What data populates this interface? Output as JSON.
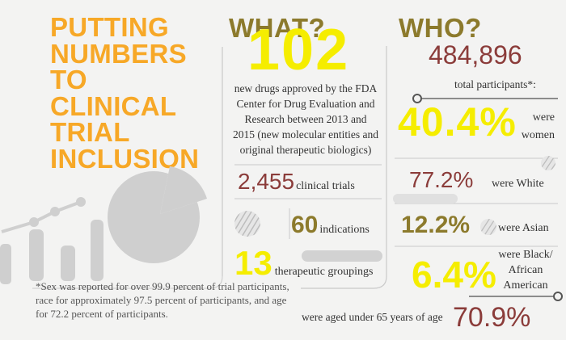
{
  "title": {
    "lines": [
      "PUTTING",
      "NUMBERS",
      "TO",
      "CLINICAL",
      "TRIAL",
      "INCLUSION"
    ]
  },
  "what": {
    "heading": "WHAT?",
    "drugs_number": "102",
    "drugs_text": [
      "new drugs approved by the FDA",
      "Center for Drug Evaluation and",
      "Research between 2013 and",
      "2015 (new molecular entities and",
      "original therapeutic biologics)"
    ],
    "trials_number": "2,455",
    "trials_label": "clinical trials",
    "indications_number": "60",
    "indications_label": "indications",
    "groupings_number": "13",
    "groupings_label": "therapeutic groupings"
  },
  "who": {
    "heading": "WHO?",
    "participants_number": "484,896",
    "participants_label": "total participants*:",
    "women_pct": "40.4%",
    "women_label": [
      "were",
      "women"
    ],
    "white_pct": "77.2%",
    "white_label": "were White",
    "asian_pct": "12.2%",
    "asian_label": "were Asian",
    "black_pct": "6.4%",
    "black_label": [
      "were Black/",
      "African",
      "American"
    ],
    "age_label": "were aged under 65 years of age",
    "age_pct": "70.9%"
  },
  "footnote": [
    "*Sex was reported for over 99.9 percent of trial participants,",
    "race for approximately 97.5 percent of participants, and age",
    "for 72.2 percent of participants."
  ],
  "colors": {
    "title": "#f7a827",
    "heading": "#8c7a2c",
    "highlight": "#f5ed00",
    "number_red": "#8b3c3a",
    "graphic_gray": "#cfcfcf"
  }
}
